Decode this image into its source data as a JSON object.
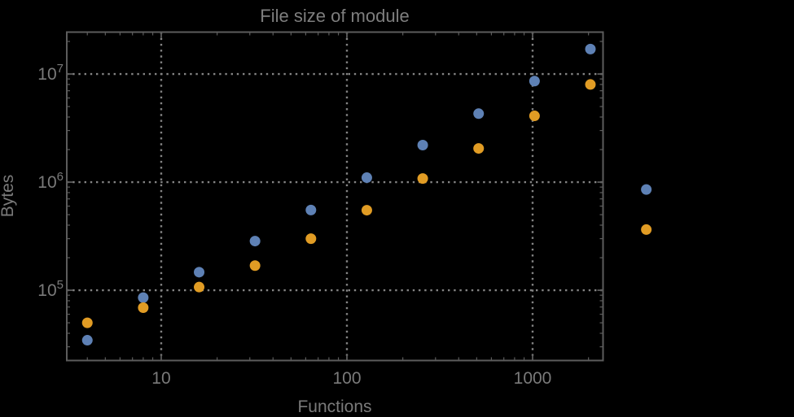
{
  "page": {
    "background": "#000000"
  },
  "chart_data": {
    "type": "scatter",
    "title": "File size of module",
    "xlabel": "Functions",
    "ylabel": "Bytes",
    "x_scale": "log",
    "y_scale": "log",
    "xlim": [
      3.1,
      2395
    ],
    "ylim": [
      22400,
      24400000
    ],
    "x_major_ticks": [
      10,
      100,
      1000
    ],
    "x_major_tick_labels": [
      "10",
      "100",
      "1000"
    ],
    "y_major_ticks": [
      100000,
      1000000,
      10000000
    ],
    "y_major_tick_labels": [
      "10^5",
      "10^6",
      "10^7"
    ],
    "grid": "dotted lines at decade ticks, both axes",
    "legend": "none",
    "frame": true,
    "marker_radius": 6.5,
    "x": [
      4,
      8,
      16,
      32,
      64,
      128,
      256,
      512,
      1024,
      2048,
      4096
    ],
    "series": [
      {
        "name": "series-1-blue",
        "color": "#5e81b5",
        "values": [
          34500,
          85500,
          147000,
          285000,
          552000,
          1100000,
          2200000,
          4300000,
          8600000,
          17000000,
          855000
        ]
      },
      {
        "name": "series-2-orange",
        "color": "#e19c24",
        "values": [
          50000,
          69000,
          107000,
          169000,
          300000,
          550000,
          1080000,
          2050000,
          4100000,
          8000000,
          364000
        ]
      }
    ],
    "colors": {
      "background": "#000000",
      "frame": "#5c5c5c",
      "grid": "#848484",
      "text": "#7a7a7a",
      "title": "#7e7e7e"
    },
    "note_points_outside_frame": "x=4096 pair is drawn to the right of the plot frame"
  }
}
